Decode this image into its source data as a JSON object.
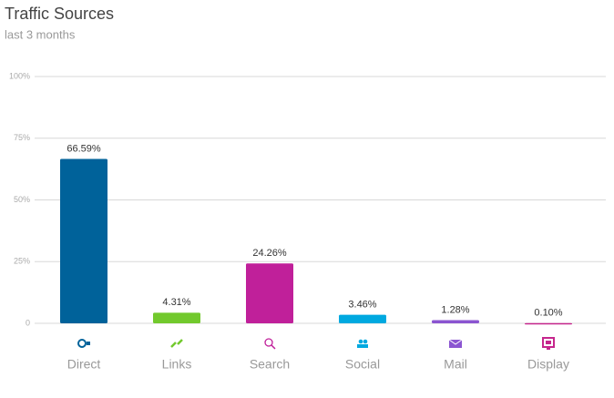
{
  "chart_data": {
    "type": "bar",
    "title": "Traffic Sources",
    "subtitle": "last 3 months",
    "categories": [
      "Direct",
      "Links",
      "Search",
      "Social",
      "Mail",
      "Display"
    ],
    "values": [
      66.59,
      4.31,
      24.26,
      3.46,
      1.28,
      0.1
    ],
    "value_labels": [
      "66.59%",
      "4.31%",
      "24.26%",
      "3.46%",
      "1.28%",
      "0.10%"
    ],
    "colors": [
      "#00629a",
      "#72c92d",
      "#c0209a",
      "#00a9e0",
      "#8b55d1",
      "#c6268d"
    ],
    "ylim": [
      0,
      100
    ],
    "yticks": [
      {
        "value": 0,
        "label": "0"
      },
      {
        "value": 25,
        "label": "25%"
      },
      {
        "value": 50,
        "label": "50%"
      },
      {
        "value": 75,
        "label": "75%"
      },
      {
        "value": 100,
        "label": "100%"
      }
    ],
    "grid": true
  }
}
